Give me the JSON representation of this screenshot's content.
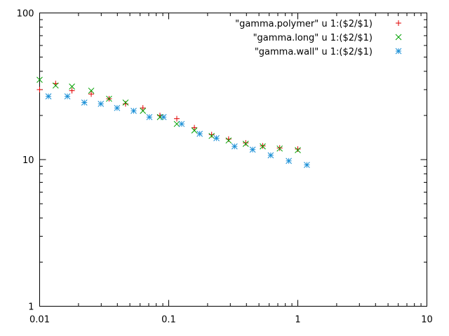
{
  "chart_data": {
    "type": "scatter",
    "title": "",
    "xlabel": "",
    "ylabel": "",
    "xscale": "log",
    "yscale": "log",
    "xlim": [
      0.01,
      10
    ],
    "ylim": [
      1,
      100
    ],
    "grid": false,
    "legend_position": "top-right",
    "x_ticks": [
      {
        "value": 0.01,
        "label": "0.01"
      },
      {
        "value": 0.1,
        "label": "0.1"
      },
      {
        "value": 1,
        "label": "1"
      },
      {
        "value": 10,
        "label": "10"
      }
    ],
    "y_ticks": [
      {
        "value": 1,
        "label": "1"
      },
      {
        "value": 10,
        "label": "10"
      },
      {
        "value": 100,
        "label": "100"
      }
    ],
    "series": [
      {
        "name": "\"gamma.polymer\" u 1:($2/$1)",
        "marker": "plus",
        "color": "#e00000",
        "x": [
          0.01,
          0.0133,
          0.0178,
          0.0251,
          0.0345,
          0.0463,
          0.0631,
          0.0855,
          0.1155,
          0.158,
          0.215,
          0.291,
          0.395,
          0.535,
          0.724,
          1.0
        ],
        "y": [
          30.0,
          33.0,
          29.5,
          28.0,
          26.0,
          24.0,
          22.5,
          20.0,
          19.0,
          16.5,
          14.8,
          13.8,
          13.0,
          12.4,
          12.0,
          11.8
        ]
      },
      {
        "name": "\"gamma.long\" u 1:($2/$1)",
        "marker": "cross",
        "color": "#00a000",
        "x": [
          0.01,
          0.0133,
          0.0178,
          0.0251,
          0.0345,
          0.0463,
          0.0631,
          0.0855,
          0.1155,
          0.158,
          0.215,
          0.291,
          0.395,
          0.535,
          0.724,
          1.0
        ],
        "y": [
          35.0,
          32.0,
          31.5,
          29.5,
          26.0,
          24.5,
          21.5,
          19.5,
          17.5,
          15.8,
          14.5,
          13.5,
          12.8,
          12.3,
          11.9,
          11.6
        ]
      },
      {
        "name": "\"gamma.wall\" u 1:($2/$1)",
        "marker": "star",
        "color": "#1a8fd6",
        "x": [
          0.0117,
          0.0164,
          0.0222,
          0.0298,
          0.0398,
          0.0535,
          0.0708,
          0.0912,
          0.1259,
          0.1738,
          0.2344,
          0.3236,
          0.4467,
          0.6166,
          0.8511,
          1.1749
        ],
        "y": [
          27.0,
          27.0,
          24.5,
          24.0,
          22.5,
          21.5,
          19.5,
          19.5,
          17.5,
          15.0,
          14.0,
          12.3,
          11.7,
          10.7,
          9.8,
          9.2
        ]
      }
    ]
  }
}
